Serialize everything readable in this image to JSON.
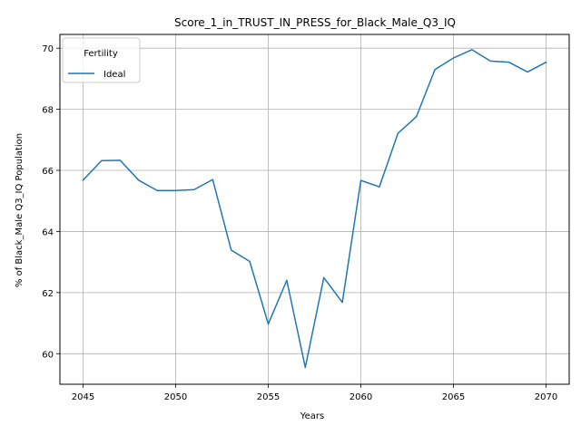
{
  "chart_data": {
    "type": "line",
    "title": "Score_1_in_TRUST_IN_PRESS_for_Black_Male_Q3_IQ",
    "xlabel": "Years",
    "ylabel": "% of Black_Male Q3_IQ Population",
    "xlim": [
      2043.75,
      2071.25
    ],
    "ylim": [
      59.0,
      70.45
    ],
    "grid": true,
    "legend": {
      "title": "Fertility",
      "placement": "top-left"
    },
    "x_ticks": [
      2045,
      2050,
      2055,
      2060,
      2065,
      2070
    ],
    "y_ticks": [
      60,
      62,
      64,
      66,
      68,
      70
    ],
    "x_tick_labels": [
      "2045",
      "2050",
      "2055",
      "2060",
      "2065",
      "2070"
    ],
    "y_tick_labels": [
      "60",
      "62",
      "64",
      "66",
      "68",
      "70"
    ],
    "series": [
      {
        "name": "Ideal",
        "color": "#1f77b4",
        "x": [
          2045,
          2046,
          2047,
          2048,
          2049,
          2050,
          2051,
          2052,
          2053,
          2054,
          2055,
          2056,
          2057,
          2058,
          2059,
          2060,
          2061,
          2062,
          2063,
          2064,
          2065,
          2066,
          2067,
          2068,
          2069,
          2070
        ],
        "y": [
          65.68,
          66.32,
          66.33,
          65.68,
          65.34,
          65.34,
          65.37,
          65.7,
          63.39,
          63.02,
          60.97,
          62.4,
          59.55,
          62.49,
          61.68,
          65.67,
          65.46,
          67.21,
          67.76,
          69.3,
          69.68,
          69.95,
          69.58,
          69.54,
          69.22,
          69.54
        ]
      }
    ]
  }
}
